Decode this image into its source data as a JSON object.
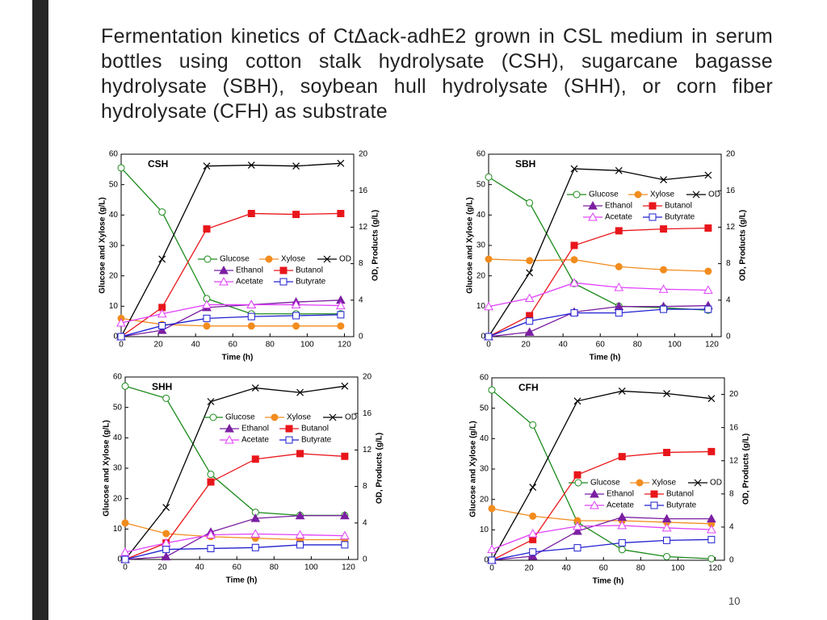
{
  "slide": {
    "title": "Fermentation kinetics of CtΔack-adhE2 grown in CSL medium in serum bottles using cotton stalk hydrolysate (CSH), sugarcane bagasse hydrolysate (SBH), soybean hull hydrolysate (SHH), or corn fiber hydrolysate (CFH) as substrate",
    "page_number": "10"
  },
  "chart_data": [
    {
      "type": "line",
      "title": "CSH",
      "x_label": "Time (h)",
      "y_label": "Glucose and Xylose (g/L)",
      "y2_label": "OD, Products (g/L)",
      "x": [
        0,
        22,
        46,
        70,
        94,
        118
      ],
      "xlim": [
        0,
        125
      ],
      "xticks": [
        0,
        20,
        40,
        60,
        80,
        100,
        120
      ],
      "ylim": [
        0,
        60
      ],
      "yticks": [
        0,
        10,
        20,
        30,
        40,
        50,
        60
      ],
      "y2lim": [
        0,
        20
      ],
      "y2ticks": [
        0,
        4,
        8,
        12,
        16,
        20
      ],
      "legend": "center",
      "series": [
        {
          "name": "Glucose",
          "color": "#1a8a1a",
          "marker": "circle-open",
          "values": [
            55.5,
            41,
            12.5,
            7.5,
            7.5,
            7.5
          ]
        },
        {
          "name": "Xylose",
          "color": "#f28c1e",
          "marker": "circle",
          "values": [
            6,
            4,
            3.5,
            3.5,
            3.5,
            3.5
          ]
        },
        {
          "name": "OD",
          "color": "#000000",
          "marker": "x",
          "axis": "y2",
          "values": [
            0,
            8.5,
            18.7,
            18.8,
            18.7,
            19
          ]
        },
        {
          "name": "Ethanol",
          "color": "#7b1fa2",
          "marker": "triangle",
          "axis": "y2",
          "values": [
            0,
            0.7,
            3.2,
            3.5,
            3.8,
            4
          ]
        },
        {
          "name": "Butanol",
          "color": "#e8161b",
          "marker": "square",
          "axis": "y2",
          "values": [
            0,
            3.2,
            11.8,
            13.5,
            13.4,
            13.5
          ]
        },
        {
          "name": "Acetate",
          "color": "#e040fb",
          "marker": "triangle-open",
          "axis": "y2",
          "values": [
            1.5,
            2.5,
            3.5,
            3.5,
            3.5,
            3.4
          ]
        },
        {
          "name": "Butyrate",
          "color": "#1f1fd1",
          "marker": "square-open",
          "axis": "y2",
          "values": [
            0,
            1.2,
            2,
            2.2,
            2.3,
            2.4
          ]
        }
      ]
    },
    {
      "type": "line",
      "title": "SBH",
      "x_label": "Time (h)",
      "y_label": "Glucose and Xylose (g/L)",
      "y2_label": "OD, Products (g/L)",
      "x": [
        0,
        22,
        46,
        70,
        94,
        118
      ],
      "xlim": [
        0,
        125
      ],
      "xticks": [
        0,
        20,
        40,
        60,
        80,
        100,
        120
      ],
      "ylim": [
        0,
        60
      ],
      "yticks": [
        0,
        10,
        20,
        30,
        40,
        50,
        60
      ],
      "y2lim": [
        0,
        20
      ],
      "y2ticks": [
        0,
        4,
        8,
        12,
        16,
        20
      ],
      "legend": "upper center",
      "series": [
        {
          "name": "Glucose",
          "color": "#1a8a1a",
          "marker": "circle-open",
          "values": [
            52.5,
            44,
            17.5,
            10,
            9.5,
            8.7
          ]
        },
        {
          "name": "Xylose",
          "color": "#f28c1e",
          "marker": "circle",
          "values": [
            25.5,
            25,
            25.3,
            23,
            22,
            21.5
          ]
        },
        {
          "name": "OD",
          "color": "#000000",
          "marker": "x",
          "axis": "y2",
          "values": [
            0,
            7,
            18.4,
            18.2,
            17.2,
            17.7
          ]
        },
        {
          "name": "Ethanol",
          "color": "#7b1fa2",
          "marker": "triangle",
          "axis": "y2",
          "values": [
            0,
            0.5,
            2.7,
            3.3,
            3.3,
            3.4
          ]
        },
        {
          "name": "Butanol",
          "color": "#e8161b",
          "marker": "square",
          "axis": "y2",
          "values": [
            0,
            2.3,
            10,
            11.6,
            11.8,
            11.9
          ]
        },
        {
          "name": "Acetate",
          "color": "#e040fb",
          "marker": "triangle-open",
          "axis": "y2",
          "values": [
            3.3,
            4.2,
            5.9,
            5.4,
            5.2,
            5.1
          ]
        },
        {
          "name": "Butyrate",
          "color": "#1f1fd1",
          "marker": "square-open",
          "axis": "y2",
          "values": [
            0,
            1.7,
            2.6,
            2.6,
            3,
            3
          ]
        }
      ]
    },
    {
      "type": "line",
      "title": "SHH",
      "x_label": "Time (h)",
      "y_label": "Glucose and Xylose (g/L)",
      "y2_label": "OD, Products (g/L)",
      "x": [
        0,
        22,
        46,
        70,
        94,
        118
      ],
      "xlim": [
        0,
        125
      ],
      "xticks": [
        0,
        20,
        40,
        60,
        80,
        100,
        120
      ],
      "ylim": [
        0,
        60
      ],
      "yticks": [
        0,
        10,
        20,
        30,
        40,
        50,
        60
      ],
      "y2lim": [
        0,
        20
      ],
      "y2ticks": [
        0,
        4,
        8,
        12,
        16,
        20
      ],
      "legend": "upper center",
      "series": [
        {
          "name": "Glucose",
          "color": "#1a8a1a",
          "marker": "circle-open",
          "values": [
            57,
            53,
            28,
            15.5,
            14.5,
            14.5
          ]
        },
        {
          "name": "Xylose",
          "color": "#f28c1e",
          "marker": "circle",
          "values": [
            12,
            8.5,
            7.5,
            7,
            6.5,
            6.5
          ]
        },
        {
          "name": "OD",
          "color": "#000000",
          "marker": "x",
          "axis": "y2",
          "values": [
            0,
            5.7,
            17.3,
            18.8,
            18.3,
            19
          ]
        },
        {
          "name": "Ethanol",
          "color": "#7b1fa2",
          "marker": "triangle",
          "axis": "y2",
          "values": [
            0,
            0.3,
            3,
            4.5,
            4.8,
            4.8
          ]
        },
        {
          "name": "Butanol",
          "color": "#e8161b",
          "marker": "square",
          "axis": "y2",
          "values": [
            0,
            1.8,
            8.5,
            11,
            11.6,
            11.3
          ]
        },
        {
          "name": "Acetate",
          "color": "#e040fb",
          "marker": "triangle-open",
          "axis": "y2",
          "values": [
            0.8,
            1.8,
            2.7,
            2.8,
            2.7,
            2.6
          ]
        },
        {
          "name": "Butyrate",
          "color": "#1f1fd1",
          "marker": "square-open",
          "axis": "y2",
          "values": [
            0,
            1.1,
            1.2,
            1.3,
            1.6,
            1.6
          ]
        }
      ]
    },
    {
      "type": "line",
      "title": "CFH",
      "x_label": "Time (h)",
      "y_label": "Glucose and Xylose (g/L)",
      "y2_label": "OD, Products (g/L)",
      "x": [
        0,
        22,
        46,
        70,
        94,
        118
      ],
      "xlim": [
        0,
        125
      ],
      "xticks": [
        0,
        20,
        40,
        60,
        80,
        100,
        120
      ],
      "ylim": [
        0,
        60
      ],
      "yticks": [
        0,
        10,
        20,
        30,
        40,
        50,
        60
      ],
      "y2lim": [
        0,
        22
      ],
      "y2ticks": [
        0,
        4,
        8,
        12,
        16,
        20
      ],
      "legend": "center",
      "series": [
        {
          "name": "Glucose",
          "color": "#1a8a1a",
          "marker": "circle-open",
          "values": [
            56,
            44.5,
            12.5,
            3.5,
            1.2,
            0.5
          ]
        },
        {
          "name": "Xylose",
          "color": "#f28c1e",
          "marker": "circle",
          "values": [
            17,
            14.5,
            13,
            13,
            12.5,
            12
          ]
        },
        {
          "name": "OD",
          "color": "#000000",
          "marker": "x",
          "axis": "y2",
          "values": [
            0,
            8.8,
            19.2,
            20.4,
            20.1,
            19.5
          ]
        },
        {
          "name": "Ethanol",
          "color": "#7b1fa2",
          "marker": "triangle",
          "axis": "y2",
          "values": [
            0,
            0.5,
            3.5,
            5.2,
            5,
            5
          ]
        },
        {
          "name": "Butanol",
          "color": "#e8161b",
          "marker": "square",
          "axis": "y2",
          "values": [
            0,
            2.5,
            10.3,
            12.5,
            13,
            13.1
          ]
        },
        {
          "name": "Acetate",
          "color": "#e040fb",
          "marker": "triangle-open",
          "axis": "y2",
          "values": [
            1.3,
            3.2,
            4.1,
            4.2,
            3.9,
            3.7
          ]
        },
        {
          "name": "Butyrate",
          "color": "#1f1fd1",
          "marker": "square-open",
          "axis": "y2",
          "values": [
            0,
            1,
            1.5,
            2.1,
            2.4,
            2.5
          ]
        }
      ]
    }
  ]
}
